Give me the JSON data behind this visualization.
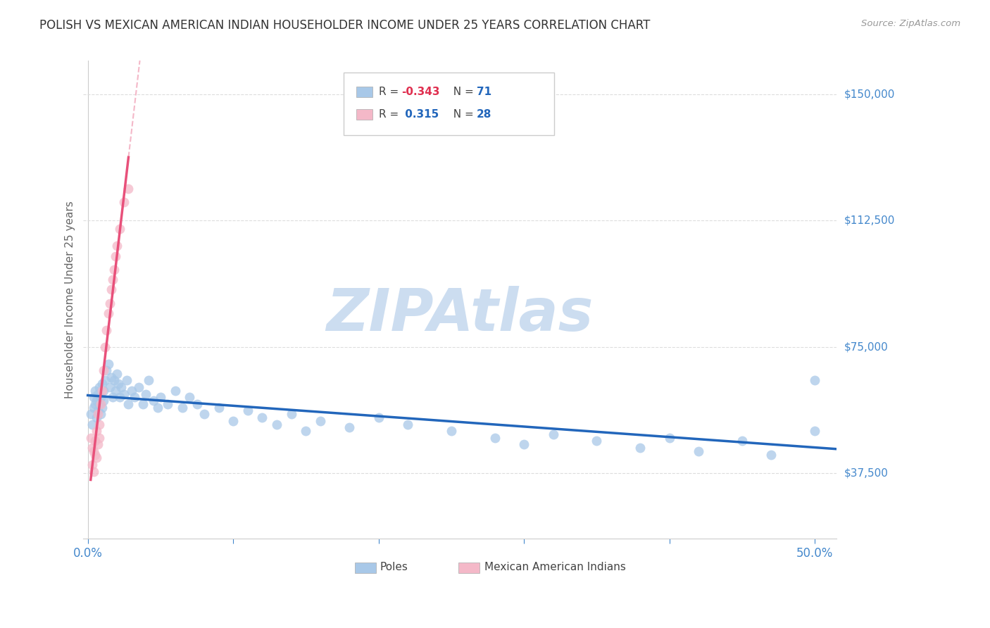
{
  "title": "POLISH VS MEXICAN AMERICAN INDIAN HOUSEHOLDER INCOME UNDER 25 YEARS CORRELATION CHART",
  "source": "Source: ZipAtlas.com",
  "ylabel": "Householder Income Under 25 years",
  "ytick_labels": [
    "$37,500",
    "$75,000",
    "$112,500",
    "$150,000"
  ],
  "ytick_values": [
    37500,
    75000,
    112500,
    150000
  ],
  "ymin": 18000,
  "ymax": 160000,
  "xmin": -0.003,
  "xmax": 0.515,
  "legend_label_blue": "Poles",
  "legend_label_pink": "Mexican American Indians",
  "poles_x": [
    0.002,
    0.003,
    0.004,
    0.004,
    0.005,
    0.005,
    0.006,
    0.006,
    0.007,
    0.007,
    0.008,
    0.008,
    0.009,
    0.009,
    0.01,
    0.01,
    0.011,
    0.011,
    0.012,
    0.013,
    0.014,
    0.015,
    0.016,
    0.017,
    0.018,
    0.019,
    0.02,
    0.021,
    0.022,
    0.023,
    0.025,
    0.027,
    0.028,
    0.03,
    0.032,
    0.035,
    0.038,
    0.04,
    0.042,
    0.045,
    0.048,
    0.05,
    0.055,
    0.06,
    0.065,
    0.07,
    0.075,
    0.08,
    0.09,
    0.1,
    0.11,
    0.12,
    0.13,
    0.14,
    0.15,
    0.16,
    0.18,
    0.2,
    0.22,
    0.25,
    0.28,
    0.3,
    0.32,
    0.35,
    0.38,
    0.4,
    0.42,
    0.45,
    0.47,
    0.5,
    0.5
  ],
  "poles_y": [
    55000,
    52000,
    57000,
    60000,
    58000,
    62000,
    54000,
    59000,
    56000,
    61000,
    58000,
    63000,
    55000,
    60000,
    57000,
    64000,
    59000,
    62000,
    65000,
    68000,
    70000,
    63000,
    66000,
    60000,
    65000,
    62000,
    67000,
    64000,
    60000,
    63000,
    61000,
    65000,
    58000,
    62000,
    60000,
    63000,
    58000,
    61000,
    65000,
    59000,
    57000,
    60000,
    58000,
    62000,
    57000,
    60000,
    58000,
    55000,
    57000,
    53000,
    56000,
    54000,
    52000,
    55000,
    50000,
    53000,
    51000,
    54000,
    52000,
    50000,
    48000,
    46000,
    49000,
    47000,
    45000,
    48000,
    44000,
    47000,
    43000,
    50000,
    65000
  ],
  "mexican_x": [
    0.002,
    0.003,
    0.003,
    0.004,
    0.004,
    0.005,
    0.005,
    0.006,
    0.006,
    0.007,
    0.007,
    0.008,
    0.008,
    0.009,
    0.01,
    0.011,
    0.012,
    0.013,
    0.014,
    0.015,
    0.016,
    0.017,
    0.018,
    0.019,
    0.02,
    0.022,
    0.025,
    0.028
  ],
  "mexican_y": [
    48000,
    45000,
    40000,
    44000,
    38000,
    43000,
    47000,
    50000,
    42000,
    55000,
    46000,
    52000,
    48000,
    58000,
    62000,
    68000,
    75000,
    80000,
    85000,
    88000,
    92000,
    95000,
    98000,
    102000,
    105000,
    110000,
    118000,
    122000
  ],
  "blue_color": "#a8c8e8",
  "pink_color": "#f4b8c8",
  "blue_line_color": "#2266bb",
  "pink_line_color": "#e8507a",
  "dashed_line_color": "#f4b8c8",
  "grid_color": "#dddddd",
  "title_color": "#333333",
  "axis_color": "#4488cc",
  "watermark_color": "#ccddf0"
}
